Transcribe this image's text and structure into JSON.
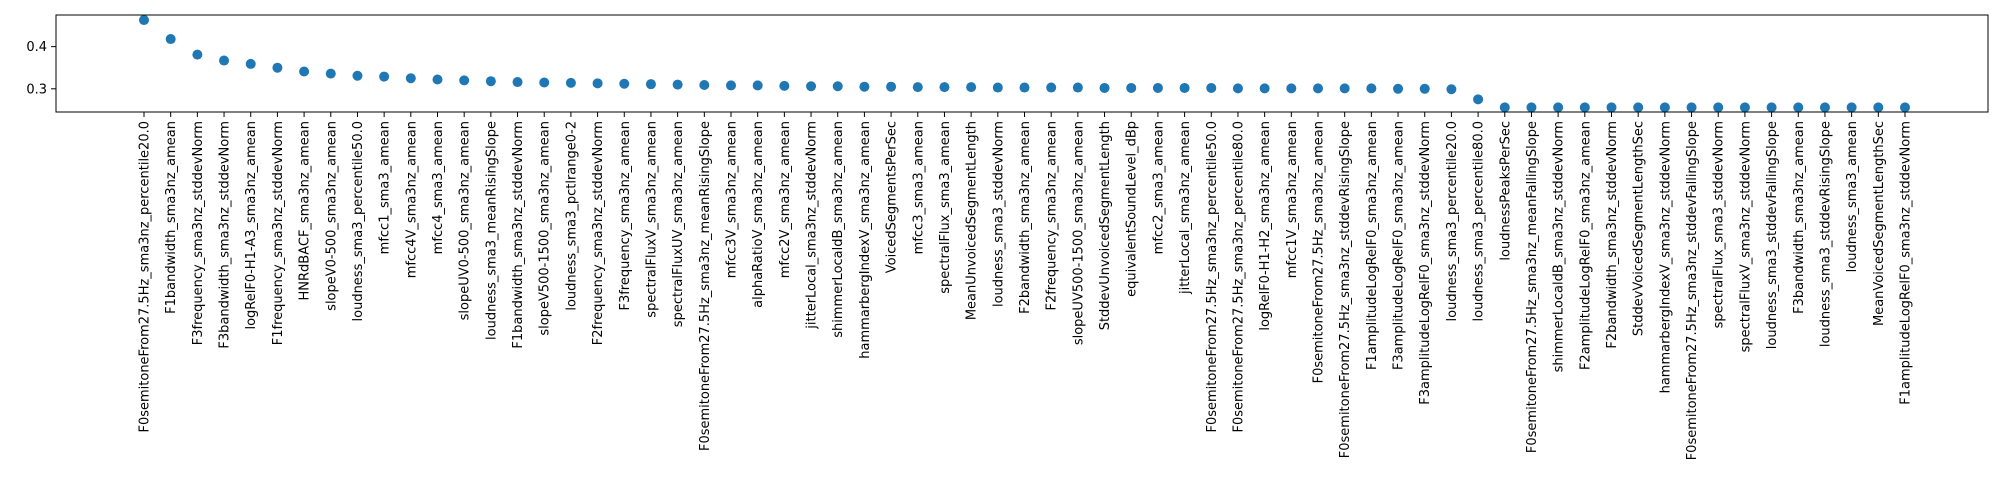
{
  "chart_data": {
    "type": "scatter",
    "title": "",
    "xlabel": "",
    "ylabel": "",
    "grid": false,
    "legend": "none",
    "ylim": [
      0.245,
      0.475
    ],
    "yticks": [
      0.3,
      0.4
    ],
    "ytick_labels": [
      "0.3",
      "0.4"
    ],
    "marker_color": "#1f77b4",
    "categories": [
      "F0semitoneFrom27.5Hz_sma3nz_percentile20.0",
      "F1bandwidth_sma3nz_amean",
      "F3frequency_sma3nz_stddevNorm",
      "F3bandwidth_sma3nz_stddevNorm",
      "logRelF0-H1-A3_sma3nz_amean",
      "F1frequency_sma3nz_stddevNorm",
      "HNRdBACF_sma3nz_amean",
      "slopeV0-500_sma3nz_amean",
      "loudness_sma3_percentile50.0",
      "mfcc1_sma3_amean",
      "mfcc4V_sma3nz_amean",
      "mfcc4_sma3_amean",
      "slopeUV0-500_sma3nz_amean",
      "loudness_sma3_meanRisingSlope",
      "F1bandwidth_sma3nz_stddevNorm",
      "slopeV500-1500_sma3nz_amean",
      "loudness_sma3_pctlrange0-2",
      "F2frequency_sma3nz_stddevNorm",
      "F3frequency_sma3nz_amean",
      "spectralFluxV_sma3nz_amean",
      "spectralFluxUV_sma3nz_amean",
      "F0semitoneFrom27.5Hz_sma3nz_meanRisingSlope",
      "mfcc3V_sma3nz_amean",
      "alphaRatioV_sma3nz_amean",
      "mfcc2V_sma3nz_amean",
      "jitterLocal_sma3nz_stddevNorm",
      "shimmerLocaldB_sma3nz_amean",
      "hammarbergIndexV_sma3nz_amean",
      "VoicedSegmentsPerSec",
      "mfcc3_sma3_amean",
      "spectralFlux_sma3_amean",
      "MeanUnvoicedSegmentLength",
      "loudness_sma3_stddevNorm",
      "F2bandwidth_sma3nz_amean",
      "F2frequency_sma3nz_amean",
      "slopeUV500-1500_sma3nz_amean",
      "StddevUnvoicedSegmentLength",
      "equivalentSoundLevel_dBp",
      "mfcc2_sma3_amean",
      "jitterLocal_sma3nz_amean",
      "F0semitoneFrom27.5Hz_sma3nz_percentile50.0",
      "F0semitoneFrom27.5Hz_sma3nz_percentile80.0",
      "logRelF0-H1-H2_sma3nz_amean",
      "mfcc1V_sma3nz_amean",
      "F0semitoneFrom27.5Hz_sma3nz_amean",
      "F0semitoneFrom27.5Hz_sma3nz_stddevRisingSlope",
      "F1amplitudeLogRelF0_sma3nz_amean",
      "F3amplitudeLogRelF0_sma3nz_amean",
      "F3amplitudeLogRelF0_sma3nz_stddevNorm",
      "loudness_sma3_percentile20.0",
      "loudness_sma3_percentile80.0",
      "loudnessPeaksPerSec",
      "F0semitoneFrom27.5Hz_sma3nz_meanFallingSlope",
      "shimmerLocaldB_sma3nz_stddevNorm",
      "F2amplitudeLogRelF0_sma3nz_amean",
      "F2bandwidth_sma3nz_stddevNorm",
      "StddevVoicedSegmentLengthSec",
      "hammarbergIndexV_sma3nz_stddevNorm",
      "F0semitoneFrom27.5Hz_sma3nz_stddevFallingSlope",
      "spectralFlux_sma3_stddevNorm",
      "spectralFluxV_sma3nz_stddevNorm",
      "loudness_sma3_stddevFallingSlope",
      "F3bandwidth_sma3nz_amean",
      "loudness_sma3_stddevRisingSlope",
      "loudness_sma3_amean",
      "MeanVoicedSegmentLengthSec",
      "F1amplitudeLogRelF0_sma3nz_stddevNorm"
    ],
    "values": [
      0.463,
      0.418,
      0.381,
      0.367,
      0.359,
      0.35,
      0.341,
      0.336,
      0.331,
      0.329,
      0.325,
      0.322,
      0.32,
      0.318,
      0.316,
      0.315,
      0.314,
      0.313,
      0.312,
      0.311,
      0.31,
      0.309,
      0.308,
      0.308,
      0.307,
      0.306,
      0.306,
      0.305,
      0.305,
      0.304,
      0.304,
      0.304,
      0.303,
      0.303,
      0.303,
      0.303,
      0.302,
      0.302,
      0.302,
      0.302,
      0.302,
      0.301,
      0.301,
      0.301,
      0.301,
      0.301,
      0.301,
      0.3,
      0.3,
      0.299,
      0.275,
      0.256,
      0.256,
      0.256,
      0.256,
      0.256,
      0.256,
      0.256,
      0.256,
      0.256,
      0.256,
      0.256,
      0.256,
      0.256,
      0.256,
      0.256,
      0.256
    ]
  }
}
